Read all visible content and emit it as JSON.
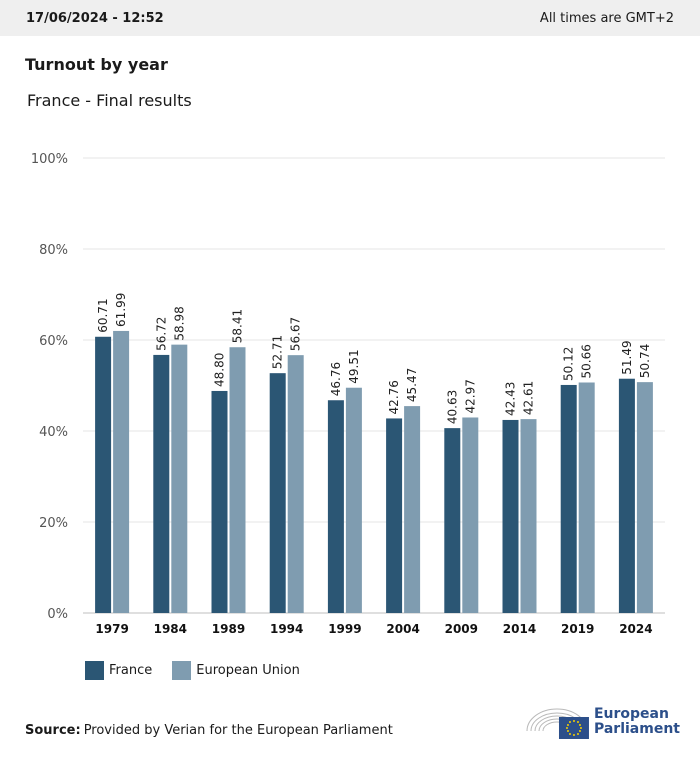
{
  "header": {
    "timestamp": "17/06/2024 - 12:52",
    "timezone_note": "All times are GMT+2"
  },
  "title": "Turnout by year",
  "subtitle": "France - Final results",
  "colors": {
    "france": "#2b5674",
    "eu": "#7f9cb0",
    "grid": "#e6e6e6",
    "axis": "#bfbfbf"
  },
  "chart_data": {
    "type": "bar",
    "categories": [
      "1979",
      "1984",
      "1989",
      "1994",
      "1999",
      "2004",
      "2009",
      "2014",
      "2019",
      "2024"
    ],
    "series": [
      {
        "name": "France",
        "values": [
          60.71,
          56.72,
          48.8,
          52.71,
          46.76,
          42.76,
          40.63,
          42.43,
          50.12,
          51.49
        ]
      },
      {
        "name": "European Union",
        "values": [
          61.99,
          58.98,
          58.41,
          56.67,
          49.51,
          45.47,
          42.97,
          42.61,
          50.66,
          50.74
        ]
      }
    ],
    "value_labels": {
      "France": [
        "60.71",
        "56.72",
        "48.80",
        "52.71",
        "46.76",
        "42.76",
        "40.63",
        "42.43",
        "50.12",
        "51.49"
      ],
      "European Union": [
        "61.99",
        "58.98",
        "58.41",
        "56.67",
        "49.51",
        "45.47",
        "42.97",
        "42.61",
        "50.66",
        "50.74"
      ]
    },
    "yticks": [
      "0%",
      "20%",
      "40%",
      "60%",
      "80%",
      "100%"
    ],
    "ylim": [
      0,
      100
    ],
    "grid": true,
    "legend_position": "bottom-left"
  },
  "legend": {
    "france_label": "France",
    "eu_label": "European Union"
  },
  "source": {
    "label": "Source:",
    "text": "Provided by Verian for the European Parliament"
  },
  "logo": {
    "line1": "European",
    "line2": "Parliament",
    "icon": "european-parliament-logo"
  }
}
